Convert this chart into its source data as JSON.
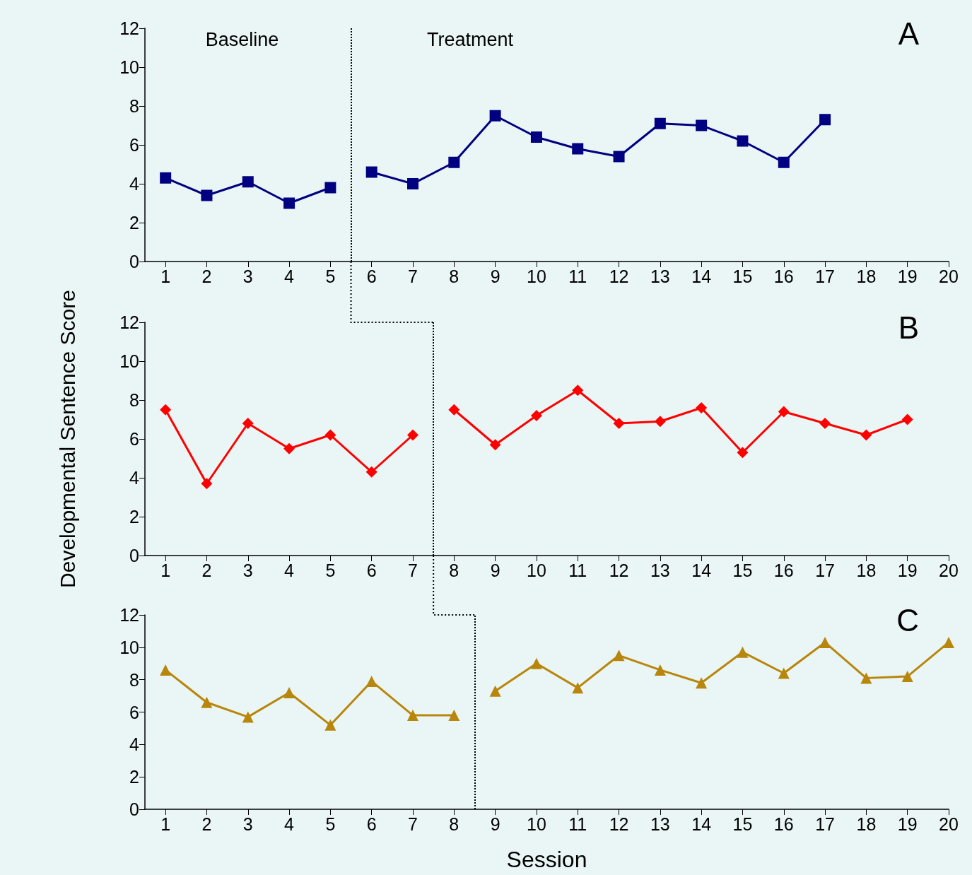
{
  "chart_data": [
    {
      "type": "line",
      "title": "A",
      "annotations": [
        "Baseline",
        "Treatment"
      ],
      "xlim": [
        0.5,
        20
      ],
      "xticks": [
        1,
        2,
        3,
        4,
        5,
        6,
        7,
        8,
        9,
        10,
        11,
        12,
        13,
        14,
        15,
        16,
        17,
        18,
        19,
        20
      ],
      "ylim": [
        0,
        12
      ],
      "yticks": [
        0,
        2,
        4,
        6,
        8,
        10,
        12
      ],
      "grid": false,
      "marker": "square",
      "line_style": "solid",
      "ref_lines": [
        {
          "axis": "x",
          "value": 5.5,
          "color": "#000000",
          "line_style": "dotted"
        }
      ],
      "series": [
        {
          "color": "#000080",
          "x": [
            1,
            2,
            3,
            4,
            5
          ],
          "values": [
            4.3,
            3.4,
            4.1,
            3.0,
            3.8
          ]
        },
        {
          "color": "#000080",
          "x": [
            6,
            7,
            8,
            9,
            10,
            11,
            12,
            13,
            14,
            15,
            16,
            17
          ],
          "values": [
            4.6,
            4.0,
            5.1,
            7.5,
            6.4,
            5.8,
            5.4,
            7.1,
            7.0,
            6.2,
            5.1,
            7.3
          ]
        }
      ]
    },
    {
      "type": "line",
      "title": "B",
      "ylabel": "Developmental Sentence Score",
      "xlim": [
        0.5,
        20
      ],
      "xticks": [
        1,
        2,
        3,
        4,
        5,
        6,
        7,
        8,
        9,
        10,
        11,
        12,
        13,
        14,
        15,
        16,
        17,
        18,
        19,
        20
      ],
      "ylim": [
        0,
        12
      ],
      "yticks": [
        0,
        2,
        4,
        6,
        8,
        10,
        12
      ],
      "grid": false,
      "marker": "diamond",
      "line_style": "solid",
      "ref_lines": [
        {
          "axis": "x",
          "value": 7.5,
          "color": "#000000",
          "line_style": "dotted"
        }
      ],
      "series": [
        {
          "color": "#ff0000",
          "x": [
            1,
            2,
            3,
            4,
            5,
            6,
            7
          ],
          "values": [
            7.5,
            3.7,
            6.8,
            5.5,
            6.2,
            4.3,
            6.2
          ]
        },
        {
          "color": "#ff0000",
          "x": [
            8,
            9,
            10,
            11,
            12,
            13,
            14,
            15,
            16,
            17,
            18,
            19
          ],
          "values": [
            7.5,
            5.7,
            7.2,
            8.5,
            6.8,
            6.9,
            7.6,
            5.3,
            7.4,
            6.8,
            6.2,
            7.0
          ]
        }
      ]
    },
    {
      "type": "line",
      "title": "C",
      "xlabel": "Session",
      "xlim": [
        0.5,
        20
      ],
      "xticks": [
        1,
        2,
        3,
        4,
        5,
        6,
        7,
        8,
        9,
        10,
        11,
        12,
        13,
        14,
        15,
        16,
        17,
        18,
        19,
        20
      ],
      "ylim": [
        0,
        12
      ],
      "yticks": [
        0,
        2,
        4,
        6,
        8,
        10,
        12
      ],
      "grid": false,
      "marker": "triangle",
      "line_style": "solid",
      "ref_lines": [
        {
          "axis": "x",
          "value": 8.5,
          "color": "#000000",
          "line_style": "dotted"
        }
      ],
      "series": [
        {
          "color": "#b8860b",
          "x": [
            1,
            2,
            3,
            4,
            5,
            6,
            7,
            8
          ],
          "values": [
            8.6,
            6.6,
            5.7,
            7.2,
            5.2,
            7.9,
            5.8,
            5.8
          ]
        },
        {
          "color": "#b8860b",
          "x": [
            9,
            10,
            11,
            12,
            13,
            14,
            15,
            16,
            17,
            18,
            19,
            20
          ],
          "values": [
            7.3,
            9.0,
            7.5,
            9.5,
            8.6,
            7.8,
            9.7,
            8.4,
            10.3,
            8.1,
            8.2,
            10.3
          ]
        }
      ]
    }
  ]
}
